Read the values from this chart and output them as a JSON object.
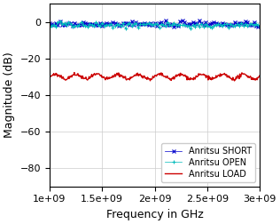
{
  "title": "",
  "xlabel": "Frequency in GHz",
  "ylabel": "Magnitude (dB)",
  "xlim": [
    1000000000.0,
    3000000000.0
  ],
  "ylim": [
    -90,
    10
  ],
  "yticks": [
    0,
    -20,
    -40,
    -60,
    -80
  ],
  "xticks": [
    1000000000.0,
    1500000000.0,
    2000000000.0,
    2500000000.0,
    3000000000.0
  ],
  "xtick_labels": [
    "1e+09",
    "1.5e+09",
    "2e+09",
    "2.5e+09",
    "3e+09"
  ],
  "short_color": "#0000cc",
  "open_color": "#00bbbb",
  "load_color": "#cc0000",
  "short_label": "Anritsu SHORT",
  "open_label": "Anritsu OPEN",
  "load_label": "Anritsu LOAD",
  "short_value": -1.0,
  "short_noise": 0.8,
  "open_value": -1.5,
  "open_noise": 0.8,
  "load_value": -30.0,
  "load_noise": 1.2,
  "n_points": 400,
  "freq_start": 1000000000.0,
  "freq_end": 3000000000.0,
  "figsize": [
    3.16,
    2.52
  ],
  "dpi": 100
}
